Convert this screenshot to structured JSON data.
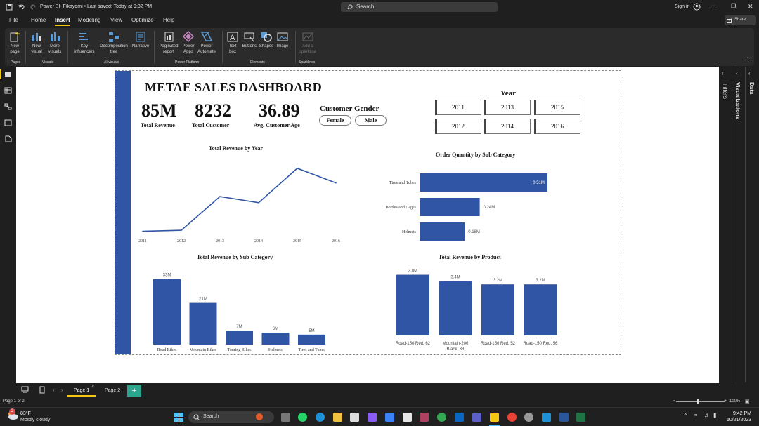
{
  "window": {
    "title": "Power BI- Fikayomi • Last saved: Today at 9:32 PM",
    "search_placeholder": "Search",
    "sign_in": "Sign in"
  },
  "menu": {
    "items": [
      "File",
      "Home",
      "Insert",
      "Modeling",
      "View",
      "Optimize",
      "Help"
    ],
    "active": "Insert",
    "share": "Share"
  },
  "ribbon": {
    "buttons": [
      {
        "label": "New\npage",
        "icon": "new-page-icon"
      },
      {
        "label": "New\nvisual",
        "icon": "new-visual-icon"
      },
      {
        "label": "More\nvisuals",
        "icon": "more-visuals-icon"
      },
      {
        "label": "Key\ninfluencers",
        "icon": "key-influencers-icon"
      },
      {
        "label": "Decomposition\ntree",
        "icon": "decomposition-tree-icon"
      },
      {
        "label": "Narrative",
        "icon": "narrative-icon"
      },
      {
        "label": "Paginated\nreport",
        "icon": "paginated-report-icon"
      },
      {
        "label": "Power\nApps",
        "icon": "power-apps-icon"
      },
      {
        "label": "Power\nAutomate",
        "icon": "power-automate-icon"
      },
      {
        "label": "Text\nbox",
        "icon": "text-box-icon"
      },
      {
        "label": "Buttons",
        "icon": "buttons-icon"
      },
      {
        "label": "Shapes",
        "icon": "shapes-icon"
      },
      {
        "label": "Image",
        "icon": "image-icon"
      },
      {
        "label": "Add a\nsparkline",
        "icon": "sparkline-icon"
      }
    ],
    "groups": [
      "Pages",
      "Visuals",
      "AI visuals",
      "Power Platform",
      "Elements",
      "Sparklines"
    ]
  },
  "dashboard": {
    "title": "METAE SALES DASHBOARD",
    "kpis": [
      {
        "value": "85M",
        "label": "Total Revenue"
      },
      {
        "value": "8232",
        "label": "Total Customer"
      },
      {
        "value": "36.89",
        "label": "Avg. Customer Age"
      }
    ],
    "gender": {
      "title": "Customer Gender",
      "options": [
        "Female",
        "Male"
      ]
    },
    "year": {
      "title": "Year",
      "options": [
        "2011",
        "2013",
        "2015",
        "2012",
        "2014",
        "2016"
      ]
    }
  },
  "chart_data": [
    {
      "type": "line",
      "title": "Total Revenue by Year",
      "categories": [
        "2011",
        "2012",
        "2013",
        "2014",
        "2015",
        "2016"
      ],
      "values": [
        0.3,
        0.6,
        10.5,
        8.7,
        18.8,
        14.5
      ],
      "ylim": [
        0,
        20
      ],
      "color": "#2f55a4"
    },
    {
      "type": "bar",
      "orientation": "horizontal",
      "title": "Order Quantity by Sub Category",
      "categories": [
        "Tires and Tubes",
        "Bottles and Cages",
        "Helmets"
      ],
      "values": [
        0.51,
        0.24,
        0.18
      ],
      "labels": [
        "0.51M",
        "0.24M",
        "0.18M"
      ],
      "xlim": [
        0,
        0.6
      ],
      "color": "#2f55a4"
    },
    {
      "type": "bar",
      "title": "Total Revenue by Sub Category",
      "categories": [
        "Road Bikes",
        "Mountain Bikes",
        "Touring Bikes",
        "Helmets",
        "Tires and Tubes"
      ],
      "values": [
        33,
        21,
        7,
        6,
        5
      ],
      "labels": [
        "33M",
        "21M",
        "7M",
        "6M",
        "5M"
      ],
      "ylim": [
        0,
        35
      ],
      "color": "#2f55a4"
    },
    {
      "type": "bar",
      "title": "Total Revenue by Product",
      "categories": [
        "Road-150 Red, 62",
        "Mountain-200 Black, 38",
        "Road-150 Red, 52",
        "Road-150 Red, 56"
      ],
      "values": [
        3.8,
        3.4,
        3.2,
        3.2
      ],
      "labels": [
        "3.8M",
        "3.4M",
        "3.2M",
        "3.2M"
      ],
      "ylim": [
        0,
        4
      ],
      "color": "#2f55a4"
    }
  ],
  "panes": {
    "filters": "Filters",
    "visualizations": "Visualizations",
    "data": "Data"
  },
  "pages": {
    "tabs": [
      "Page 1",
      "Page 2"
    ],
    "active": "Page 1",
    "add": "+",
    "status": "Page 1 of 2",
    "zoom": "100%"
  },
  "taskbar": {
    "weather_temp": "83°F",
    "weather_desc": "Mostly cloudy",
    "search": "Search",
    "time": "9:42 PM",
    "date": "10/21/2023"
  },
  "colors": {
    "accent": "#f2c811",
    "chart_blue": "#2f55a4"
  }
}
